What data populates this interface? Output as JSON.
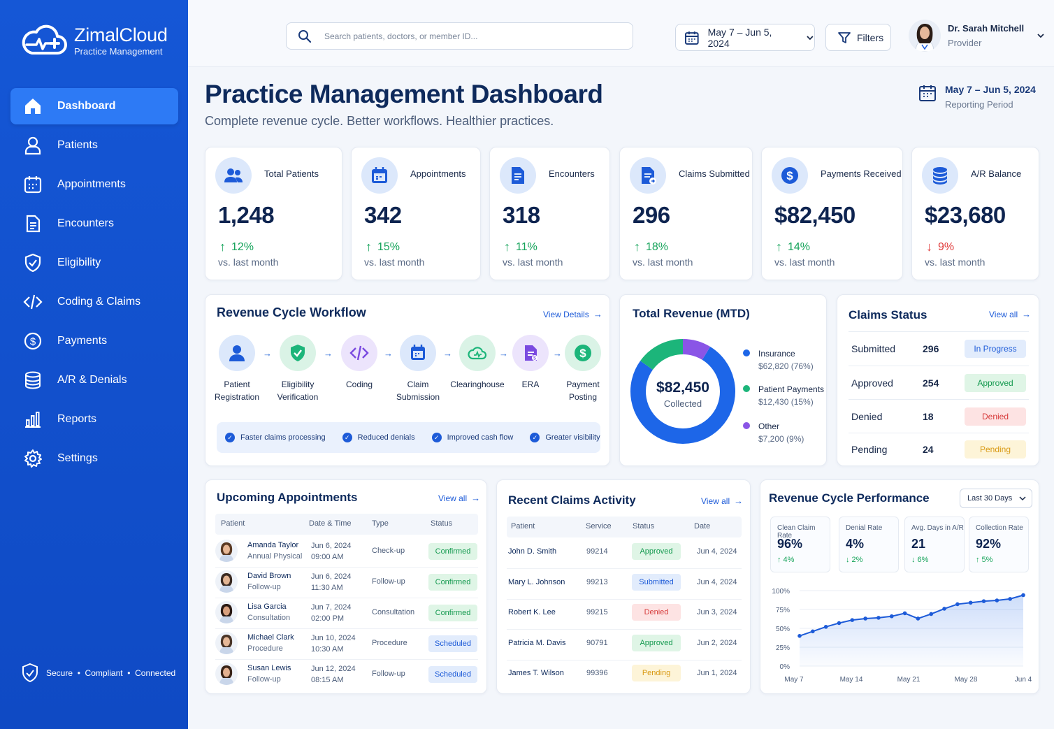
{
  "brand": {
    "name": "ZimalCloud",
    "subtitle": "Practice Management"
  },
  "nav": [
    {
      "label": "Dashboard",
      "icon": "home-icon"
    },
    {
      "label": "Patients",
      "icon": "user-icon"
    },
    {
      "label": "Appointments",
      "icon": "calendar-icon"
    },
    {
      "label": "Encounters",
      "icon": "document-icon"
    },
    {
      "label": "Eligibility",
      "icon": "shield-check-icon"
    },
    {
      "label": "Coding & Claims",
      "icon": "code-icon"
    },
    {
      "label": "Payments",
      "icon": "dollar-icon"
    },
    {
      "label": "A/R & Denials",
      "icon": "database-icon"
    },
    {
      "label": "Reports",
      "icon": "bar-chart-icon"
    },
    {
      "label": "Settings",
      "icon": "gear-icon"
    }
  ],
  "footer": {
    "text": "Secure  •  Compliant  •  Connected"
  },
  "topbar": {
    "search_placeholder": "Search patients, doctors, or member ID...",
    "date_range": "May 7 – Jun 5, 2024",
    "filters_label": "Filters",
    "user_name": "Dr. Sarah Mitchell",
    "user_role": "Provider"
  },
  "header": {
    "title": "Practice Management Dashboard",
    "subtitle": "Complete revenue cycle. Better workflows. Healthier practices.",
    "period_date": "May 7 – Jun 5, 2024",
    "period_label": "Reporting Period"
  },
  "kpis": [
    {
      "title": "Total Patients",
      "value": "1,248",
      "change": "12%",
      "direction": "up",
      "vs": "vs. last month"
    },
    {
      "title": "Appointments",
      "value": "342",
      "change": "15%",
      "direction": "up",
      "vs": "vs. last month"
    },
    {
      "title": "Encounters",
      "value": "318",
      "change": "11%",
      "direction": "up",
      "vs": "vs. last month"
    },
    {
      "title": "Claims Submitted",
      "value": "296",
      "change": "18%",
      "direction": "up",
      "vs": "vs. last month"
    },
    {
      "title": "Payments Received",
      "value": "$82,450",
      "change": "14%",
      "direction": "up",
      "vs": "vs. last month"
    },
    {
      "title": "A/R Balance",
      "value": "$23,680",
      "change": "9%",
      "direction": "down",
      "vs": "vs. last month"
    }
  ],
  "workflow": {
    "title": "Revenue Cycle Workflow",
    "view_label": "View Details",
    "steps": [
      {
        "line1": "Patient",
        "line2": "Registration"
      },
      {
        "line1": "Eligibility",
        "line2": "Verification"
      },
      {
        "line1": "Coding",
        "line2": ""
      },
      {
        "line1": "Claim",
        "line2": "Submission"
      },
      {
        "line1": "Clearinghouse",
        "line2": ""
      },
      {
        "line1": "ERA",
        "line2": ""
      },
      {
        "line1": "Payment",
        "line2": "Posting"
      }
    ],
    "benefits": [
      "Faster claims processing",
      "Reduced denials",
      "Improved cash flow",
      "Greater visibility"
    ]
  },
  "revenue": {
    "title": "Total Revenue (MTD)",
    "center_value": "$82,450",
    "center_label": "Collected",
    "legend": [
      {
        "name": "Insurance",
        "value": "$62,820 (76%)",
        "color": "#1d66e8"
      },
      {
        "name": "Patient Payments",
        "value": "$12,430 (15%)",
        "color": "#1cb57a"
      },
      {
        "name": "Other",
        "value": "$7,200 (9%)",
        "color": "#8a55e6"
      }
    ]
  },
  "chart_data": [
    {
      "type": "pie",
      "title": "Total Revenue (MTD)",
      "categories": [
        "Insurance",
        "Patient Payments",
        "Other"
      ],
      "values": [
        62820,
        12430,
        7200
      ],
      "percent": [
        76,
        15,
        9
      ]
    },
    {
      "type": "line",
      "title": "Revenue Cycle Performance",
      "x": [
        "May 7",
        "May 9",
        "May 11",
        "May 12",
        "May 14",
        "May 15",
        "May 17",
        "May 19",
        "May 20",
        "May 21",
        "May 23",
        "May 25",
        "May 26",
        "May 28",
        "May 30",
        "Jun 1",
        "Jun 2",
        "Jun 4"
      ],
      "x_ticks": [
        "May 7",
        "May 14",
        "May 21",
        "May 28",
        "Jun 4"
      ],
      "y_ticks": [
        "100%",
        "75%",
        "50%",
        "25%",
        "0%"
      ],
      "values": [
        40,
        46,
        52,
        57,
        61,
        63,
        64,
        66,
        70,
        63,
        69,
        76,
        82,
        84,
        86,
        87,
        89,
        94
      ],
      "ylim": [
        0,
        100
      ]
    }
  ],
  "claims_status": {
    "title": "Claims Status",
    "view_label": "View all",
    "rows": [
      {
        "label": "Submitted",
        "count": "296",
        "badge": "In Progress",
        "tone": "blue"
      },
      {
        "label": "Approved",
        "count": "254",
        "badge": "Approved",
        "tone": "green"
      },
      {
        "label": "Denied",
        "count": "18",
        "badge": "Denied",
        "tone": "red"
      },
      {
        "label": "Pending",
        "count": "24",
        "badge": "Pending",
        "tone": "yellow"
      }
    ]
  },
  "appointments": {
    "title": "Upcoming Appointments",
    "view_label": "View all",
    "columns": [
      "Patient",
      "Date & Time",
      "Type",
      "Status"
    ],
    "rows": [
      {
        "name": "Amanda Taylor",
        "sub": "Annual Physical",
        "date": "Jun 6, 2024",
        "time": "09:00 AM",
        "type": "Check-up",
        "status": "Confirmed",
        "tone": "green"
      },
      {
        "name": "David Brown",
        "sub": "Follow-up",
        "date": "Jun 6, 2024",
        "time": "11:30 AM",
        "type": "Follow-up",
        "status": "Confirmed",
        "tone": "green"
      },
      {
        "name": "Lisa Garcia",
        "sub": "Consultation",
        "date": "Jun 7, 2024",
        "time": "02:00 PM",
        "type": "Consultation",
        "status": "Confirmed",
        "tone": "green"
      },
      {
        "name": "Michael Clark",
        "sub": "Procedure",
        "date": "Jun 10, 2024",
        "time": "10:30 AM",
        "type": "Procedure",
        "status": "Scheduled",
        "tone": "blue"
      },
      {
        "name": "Susan Lewis",
        "sub": "Follow-up",
        "date": "Jun 12, 2024",
        "time": "08:15 AM",
        "type": "Follow-up",
        "status": "Scheduled",
        "tone": "blue"
      }
    ]
  },
  "claims_activity": {
    "title": "Recent Claims Activity",
    "view_label": "View all",
    "columns": [
      "Patient",
      "Service",
      "Status",
      "Date"
    ],
    "rows": [
      {
        "patient": "John D. Smith",
        "service": "99214",
        "status": "Approved",
        "tone": "green",
        "date": "Jun 4, 2024"
      },
      {
        "patient": "Mary L. Johnson",
        "service": "99213",
        "status": "Submitted",
        "tone": "blue",
        "date": "Jun 4, 2024"
      },
      {
        "patient": "Robert K. Lee",
        "service": "99215",
        "status": "Denied",
        "tone": "red",
        "date": "Jun 3, 2024"
      },
      {
        "patient": "Patricia M. Davis",
        "service": "90791",
        "status": "Approved",
        "tone": "green",
        "date": "Jun 2, 2024"
      },
      {
        "patient": "James T. Wilson",
        "service": "99396",
        "status": "Pending",
        "tone": "yellow",
        "date": "Jun 1, 2024"
      }
    ]
  },
  "performance": {
    "title": "Revenue Cycle Performance",
    "range_label": "Last 30 Days",
    "metrics": [
      {
        "label": "Clean Claim Rate",
        "value": "96%",
        "change": "↑ 4%"
      },
      {
        "label": "Denial Rate",
        "value": "4%",
        "change": "↓ 2%"
      },
      {
        "label": "Avg. Days in A/R",
        "value": "21",
        "change": "↓ 6%"
      },
      {
        "label": "Collection Rate",
        "value": "92%",
        "change": "↑ 5%"
      }
    ]
  }
}
